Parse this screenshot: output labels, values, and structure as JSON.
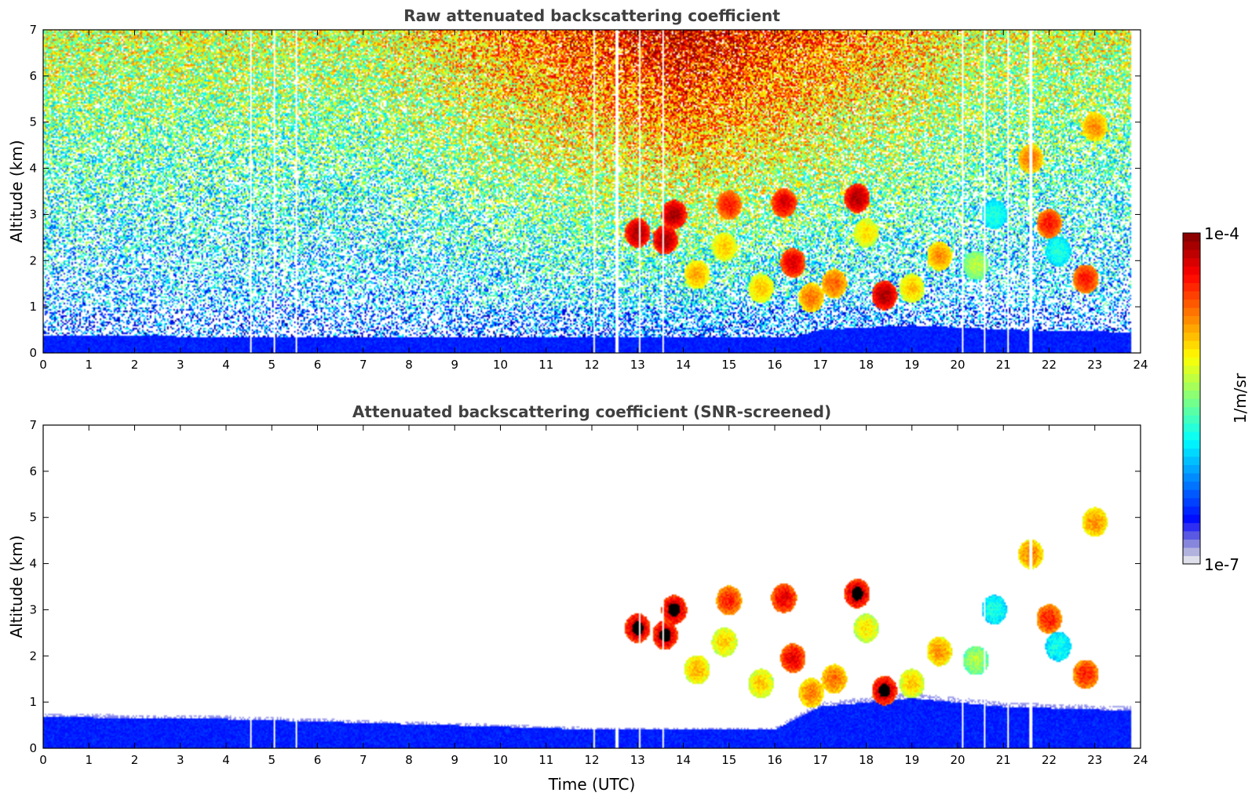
{
  "chart_data": [
    {
      "type": "heatmap",
      "title": "Raw attenuated backscattering coefficient",
      "xlabel": "",
      "ylabel": "Altitude (km)",
      "xlim": [
        0,
        24
      ],
      "ylim": [
        0,
        7
      ],
      "xticks": [
        "0",
        "1",
        "2",
        "3",
        "4",
        "5",
        "6",
        "7",
        "8",
        "9",
        "10",
        "11",
        "12",
        "13",
        "14",
        "15",
        "16",
        "17",
        "18",
        "19",
        "20",
        "21",
        "22",
        "23",
        "24"
      ],
      "yticks": [
        "0",
        "1",
        "2",
        "3",
        "4",
        "5",
        "6",
        "7"
      ],
      "screened": false,
      "data_gaps_utc": [
        4.55,
        5.05,
        5.55,
        12.05,
        12.55,
        13.05,
        13.55,
        20.1,
        20.6,
        21.1,
        21.6
      ],
      "data_end_utc": 23.8,
      "clouds": [
        {
          "t": 13.0,
          "alt": 2.6,
          "val": 1.0
        },
        {
          "t": 13.6,
          "alt": 2.45,
          "val": 1.0
        },
        {
          "t": 13.8,
          "alt": 3.0,
          "val": 1.0
        },
        {
          "t": 14.3,
          "alt": 1.7,
          "val": 0.75
        },
        {
          "t": 14.9,
          "alt": 2.3,
          "val": 0.72
        },
        {
          "t": 15.0,
          "alt": 3.2,
          "val": 0.9
        },
        {
          "t": 15.7,
          "alt": 1.4,
          "val": 0.72
        },
        {
          "t": 16.2,
          "alt": 3.25,
          "val": 0.95
        },
        {
          "t": 16.4,
          "alt": 1.95,
          "val": 0.95
        },
        {
          "t": 16.8,
          "alt": 1.2,
          "val": 0.8
        },
        {
          "t": 17.3,
          "alt": 1.5,
          "val": 0.82
        },
        {
          "t": 17.8,
          "alt": 3.35,
          "val": 1.0
        },
        {
          "t": 18.0,
          "alt": 2.6,
          "val": 0.7
        },
        {
          "t": 18.4,
          "alt": 1.25,
          "val": 1.0
        },
        {
          "t": 19.0,
          "alt": 1.4,
          "val": 0.72
        },
        {
          "t": 19.6,
          "alt": 2.1,
          "val": 0.78
        },
        {
          "t": 20.4,
          "alt": 1.9,
          "val": 0.6
        },
        {
          "t": 20.8,
          "alt": 3.0,
          "val": 0.45
        },
        {
          "t": 21.6,
          "alt": 4.2,
          "val": 0.8
        },
        {
          "t": 22.0,
          "alt": 2.8,
          "val": 0.9
        },
        {
          "t": 22.2,
          "alt": 2.2,
          "val": 0.45
        },
        {
          "t": 23.0,
          "alt": 4.9,
          "val": 0.78
        },
        {
          "t": 22.8,
          "alt": 1.6,
          "val": 0.9
        }
      ]
    },
    {
      "type": "heatmap",
      "title": "Attenuated backscattering coefficient (SNR-screened)",
      "xlabel": "Time (UTC)",
      "ylabel": "Altitude (km)",
      "xlim": [
        0,
        24
      ],
      "ylim": [
        0,
        7
      ],
      "xticks": [
        "0",
        "1",
        "2",
        "3",
        "4",
        "5",
        "6",
        "7",
        "8",
        "9",
        "10",
        "11",
        "12",
        "13",
        "14",
        "15",
        "16",
        "17",
        "18",
        "19",
        "20",
        "21",
        "22",
        "23",
        "24"
      ],
      "yticks": [
        "0",
        "1",
        "2",
        "3",
        "4",
        "5",
        "6",
        "7"
      ],
      "screened": true,
      "boundary_layer_top_km": [
        [
          0,
          0.75
        ],
        [
          4,
          0.7
        ],
        [
          9,
          0.55
        ],
        [
          12,
          0.45
        ],
        [
          16,
          0.45
        ],
        [
          17,
          1.0
        ],
        [
          19,
          1.2
        ],
        [
          21,
          1.0
        ],
        [
          23.8,
          0.9
        ]
      ]
    }
  ],
  "colorbar": {
    "label": "1/m/sr",
    "min_label": "1e-7",
    "max_label": "1e-4",
    "scale": "log",
    "colormap": "jet",
    "levels": 40
  }
}
